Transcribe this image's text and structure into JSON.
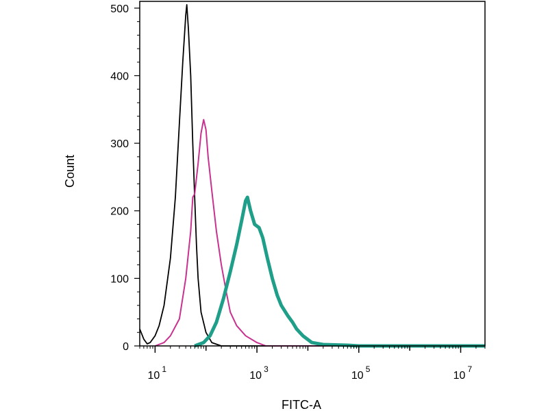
{
  "chart_data": {
    "type": "line",
    "title": "",
    "xlabel": "FITC-A",
    "ylabel": "Count",
    "x_scale": "log",
    "xlim": [
      5,
      30000000
    ],
    "ylim": [
      0,
      510
    ],
    "grid": false,
    "x_ticks": [
      {
        "value": 10,
        "base": "10",
        "exp": "1"
      },
      {
        "value": 1000,
        "base": "10",
        "exp": "3"
      },
      {
        "value": 100000,
        "base": "10",
        "exp": "5"
      },
      {
        "value": 10000000,
        "base": "10",
        "exp": "7"
      }
    ],
    "y_ticks": [
      0,
      100,
      200,
      300,
      400,
      500
    ],
    "series": [
      {
        "color": "#000000",
        "points": [
          [
            5,
            25
          ],
          [
            6,
            10
          ],
          [
            7,
            3
          ],
          [
            8,
            5
          ],
          [
            10,
            15
          ],
          [
            12,
            30
          ],
          [
            15,
            60
          ],
          [
            20,
            130
          ],
          [
            25,
            220
          ],
          [
            30,
            330
          ],
          [
            35,
            420
          ],
          [
            40,
            490
          ],
          [
            42,
            505
          ],
          [
            45,
            470
          ],
          [
            50,
            400
          ],
          [
            55,
            300
          ],
          [
            60,
            220
          ],
          [
            65,
            150
          ],
          [
            70,
            100
          ],
          [
            80,
            50
          ],
          [
            100,
            20
          ],
          [
            130,
            5
          ],
          [
            200,
            0
          ],
          [
            30000000,
            0
          ]
        ]
      },
      {
        "color": "#c8318f",
        "points": [
          [
            10,
            0
          ],
          [
            15,
            5
          ],
          [
            20,
            15
          ],
          [
            30,
            40
          ],
          [
            40,
            100
          ],
          [
            50,
            170
          ],
          [
            55,
            220
          ],
          [
            60,
            225
          ],
          [
            70,
            270
          ],
          [
            80,
            315
          ],
          [
            90,
            335
          ],
          [
            100,
            320
          ],
          [
            110,
            280
          ],
          [
            130,
            230
          ],
          [
            160,
            170
          ],
          [
            200,
            120
          ],
          [
            250,
            80
          ],
          [
            300,
            50
          ],
          [
            400,
            30
          ],
          [
            600,
            15
          ],
          [
            1000,
            5
          ],
          [
            1500,
            0
          ],
          [
            30000000,
            0
          ]
        ]
      },
      {
        "color": "#1f9e89",
        "points": [
          [
            60,
            0
          ],
          [
            90,
            5
          ],
          [
            120,
            15
          ],
          [
            160,
            35
          ],
          [
            220,
            70
          ],
          [
            300,
            110
          ],
          [
            400,
            150
          ],
          [
            500,
            185
          ],
          [
            600,
            215
          ],
          [
            650,
            220
          ],
          [
            750,
            200
          ],
          [
            900,
            180
          ],
          [
            1100,
            175
          ],
          [
            1300,
            160
          ],
          [
            1600,
            130
          ],
          [
            2000,
            100
          ],
          [
            2500,
            75
          ],
          [
            3000,
            60
          ],
          [
            4000,
            45
          ],
          [
            5000,
            35
          ],
          [
            6000,
            25
          ],
          [
            8000,
            15
          ],
          [
            12000,
            5
          ],
          [
            20000,
            2
          ],
          [
            60000,
            1
          ],
          [
            100000,
            0
          ],
          [
            30000000,
            0
          ]
        ]
      }
    ]
  }
}
